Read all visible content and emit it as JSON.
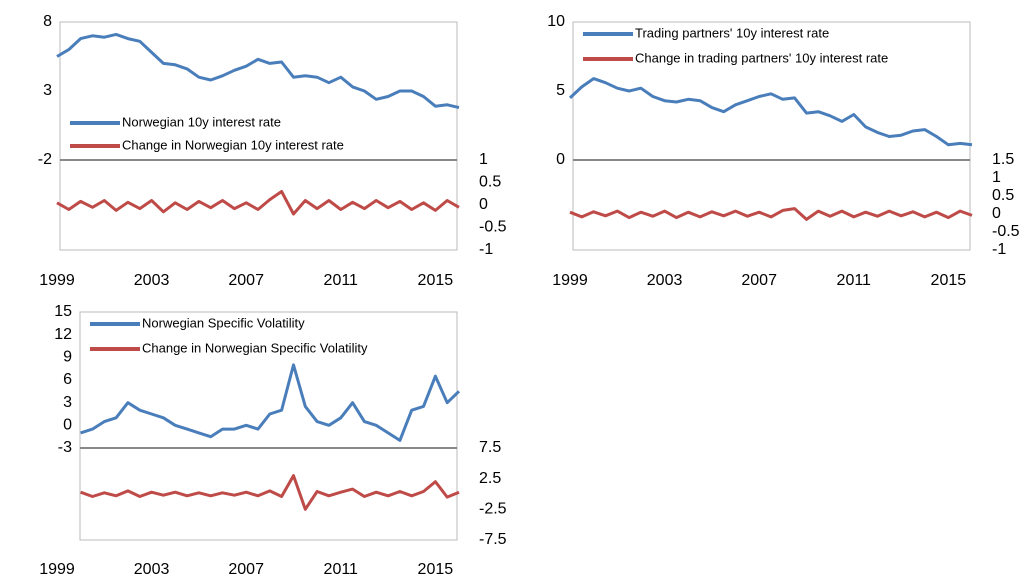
{
  "chart_data": [
    {
      "type": "line",
      "legend": "lower left",
      "x": [
        1999,
        1999.5,
        2000,
        2000.5,
        2001,
        2001.5,
        2002,
        2002.5,
        2003,
        2003.5,
        2004,
        2004.5,
        2005,
        2005.5,
        2006,
        2006.5,
        2007,
        2007.5,
        2008,
        2008.5,
        2009,
        2009.5,
        2010,
        2010.5,
        2011,
        2011.5,
        2012,
        2012.5,
        2013,
        2013.5,
        2014,
        2014.5,
        2015,
        2015.5,
        2016
      ],
      "xlim": [
        1999,
        2016
      ],
      "xticks": [
        1999,
        2003,
        2007,
        2011,
        2015
      ],
      "ylim": [
        -2,
        8
      ],
      "yticks": [
        -2,
        3,
        8
      ],
      "y2lim": [
        -1,
        1
      ],
      "y2ticks": [
        -1,
        -0.5,
        0,
        0.5,
        1
      ],
      "series": [
        {
          "name": "Norwegian 10y interest rate",
          "color": "#4a7ebb",
          "values": [
            5.5,
            6.0,
            6.8,
            7.0,
            6.9,
            7.1,
            6.8,
            6.6,
            5.8,
            5.0,
            4.9,
            4.6,
            4.0,
            3.8,
            4.1,
            4.5,
            4.8,
            5.3,
            5.0,
            5.1,
            4.0,
            4.1,
            4.0,
            3.6,
            4.0,
            3.3,
            3.0,
            2.4,
            2.6,
            3.0,
            3.0,
            2.6,
            1.9,
            2.0,
            1.8
          ]
        },
        {
          "name": "Change in Norwegian 10y interest rate",
          "color": "#be4b48",
          "axis": "y2",
          "values": [
            0.05,
            -0.1,
            0.08,
            -0.05,
            0.1,
            -0.12,
            0.06,
            -0.08,
            0.1,
            -0.15,
            0.05,
            -0.1,
            0.08,
            -0.06,
            0.1,
            -0.08,
            0.05,
            -0.1,
            0.12,
            0.3,
            -0.2,
            0.1,
            -0.08,
            0.1,
            -0.1,
            0.06,
            -0.08,
            0.1,
            -0.06,
            0.08,
            -0.1,
            0.05,
            -0.12,
            0.1,
            -0.05
          ]
        }
      ]
    },
    {
      "type": "line",
      "legend": "upper left",
      "x": [
        1999,
        1999.5,
        2000,
        2000.5,
        2001,
        2001.5,
        2002,
        2002.5,
        2003,
        2003.5,
        2004,
        2004.5,
        2005,
        2005.5,
        2006,
        2006.5,
        2007,
        2007.5,
        2008,
        2008.5,
        2009,
        2009.5,
        2010,
        2010.5,
        2011,
        2011.5,
        2012,
        2012.5,
        2013,
        2013.5,
        2014,
        2014.5,
        2015,
        2015.5,
        2016
      ],
      "xlim": [
        1999,
        2016
      ],
      "xticks": [
        1999,
        2003,
        2007,
        2011,
        2015
      ],
      "ylim": [
        0,
        10
      ],
      "yticks": [
        0,
        5,
        10
      ],
      "y2lim": [
        -1,
        1.5
      ],
      "y2ticks": [
        -1,
        -0.5,
        0,
        0.5,
        1,
        1.5
      ],
      "series": [
        {
          "name": "Trading partners' 10y interest rate",
          "color": "#4a7ebb",
          "values": [
            4.5,
            5.3,
            5.9,
            5.6,
            5.2,
            5.0,
            5.2,
            4.6,
            4.3,
            4.2,
            4.4,
            4.3,
            3.8,
            3.5,
            4.0,
            4.3,
            4.6,
            4.8,
            4.4,
            4.5,
            3.4,
            3.5,
            3.2,
            2.8,
            3.3,
            2.4,
            2.0,
            1.7,
            1.8,
            2.1,
            2.2,
            1.7,
            1.1,
            1.2,
            1.1
          ]
        },
        {
          "name": "Change in trading partners' 10y interest rate",
          "color": "#be4b48",
          "axis": "y2",
          "values": [
            0.05,
            -0.08,
            0.06,
            -0.05,
            0.08,
            -0.1,
            0.05,
            -0.06,
            0.08,
            -0.1,
            0.05,
            -0.08,
            0.06,
            -0.05,
            0.08,
            -0.06,
            0.05,
            -0.08,
            0.1,
            0.15,
            -0.15,
            0.08,
            -0.06,
            0.08,
            -0.08,
            0.05,
            -0.06,
            0.08,
            -0.05,
            0.06,
            -0.08,
            0.05,
            -0.1,
            0.08,
            -0.04
          ]
        }
      ]
    },
    {
      "type": "line",
      "legend": "upper left",
      "x": [
        2000,
        2000.5,
        2001,
        2001.5,
        2002,
        2002.5,
        2003,
        2003.5,
        2004,
        2004.5,
        2005,
        2005.5,
        2006,
        2006.5,
        2007,
        2007.5,
        2008,
        2008.5,
        2009,
        2009.5,
        2010,
        2010.5,
        2011,
        2011.5,
        2012,
        2012.5,
        2013,
        2013.5,
        2014,
        2014.5,
        2015,
        2015.5,
        2016
      ],
      "xlim": [
        1999,
        2016
      ],
      "xticks": [
        1999,
        2003,
        2007,
        2011,
        2015
      ],
      "ylim": [
        -3,
        15
      ],
      "yticks": [
        -3,
        0,
        3,
        6,
        9,
        12,
        15
      ],
      "y2lim": [
        -7.5,
        7.5
      ],
      "y2ticks": [
        -7.5,
        -2.5,
        2.5,
        7.5
      ],
      "series": [
        {
          "name": "Norwegian Specific Volatility",
          "color": "#4a7ebb",
          "values": [
            -1,
            -0.5,
            0.5,
            1.0,
            3.0,
            2.0,
            1.5,
            1.0,
            0.0,
            -0.5,
            -1.0,
            -1.5,
            -0.5,
            -0.5,
            0.0,
            -0.5,
            1.5,
            2.0,
            8.0,
            2.5,
            0.5,
            0.0,
            1.0,
            3.0,
            0.5,
            0.0,
            -1.0,
            -2.0,
            2.0,
            2.5,
            6.5,
            3.0,
            4.5
          ]
        },
        {
          "name": "Change in Norwegian Specific Volatility",
          "color": "#be4b48",
          "axis": "y2",
          "values": [
            0.3,
            -0.4,
            0.2,
            -0.3,
            0.5,
            -0.4,
            0.3,
            -0.2,
            0.3,
            -0.3,
            0.2,
            -0.3,
            0.2,
            -0.2,
            0.3,
            -0.3,
            0.5,
            -0.4,
            3.0,
            -2.5,
            0.4,
            -0.3,
            0.3,
            0.8,
            -0.4,
            0.3,
            -0.3,
            0.4,
            -0.3,
            0.4,
            2.0,
            -0.5,
            0.3
          ]
        }
      ]
    }
  ]
}
